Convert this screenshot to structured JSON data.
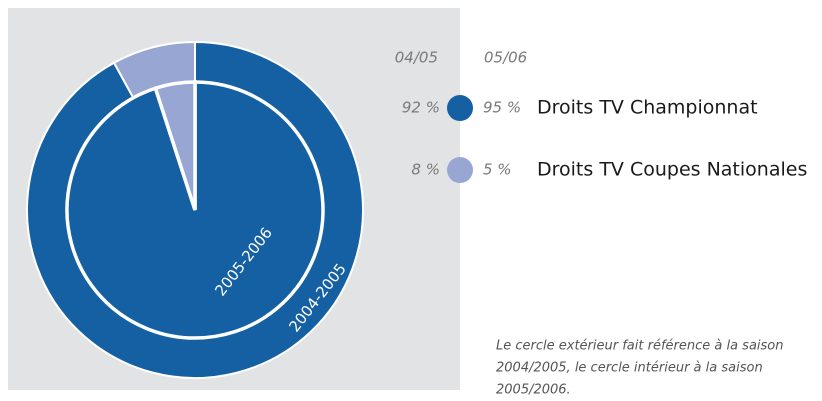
{
  "chart_data": {
    "type": "pie",
    "categories": [
      "Droits TV Championnat",
      "Droits TV Coupes Nationales"
    ],
    "colors": [
      "#1560a3",
      "#98a6d3"
    ],
    "legend_columns": [
      "04/05",
      "05/06"
    ],
    "series": [
      {
        "name": "2004-2005",
        "values": [
          92,
          8
        ],
        "value_labels": [
          "92 %",
          "8 %"
        ]
      },
      {
        "name": "2005-2006",
        "values": [
          95,
          5
        ],
        "value_labels": [
          "95 %",
          "5 %"
        ]
      }
    ],
    "note": [
      "Le cercle extérieur fait référence à la saison",
      "2004/2005, le cercle intérieur à la saison",
      "2005/2006."
    ]
  }
}
